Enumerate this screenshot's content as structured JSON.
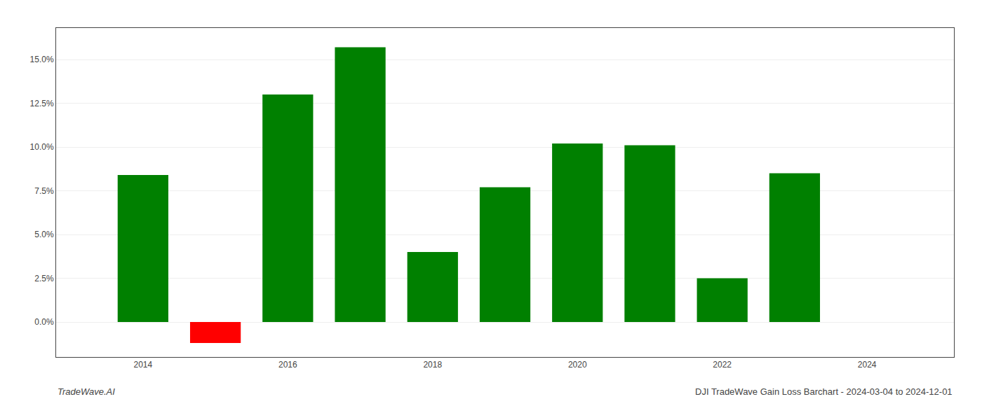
{
  "chart_data": {
    "type": "bar",
    "x": [
      2014,
      2015,
      2016,
      2017,
      2018,
      2019,
      2020,
      2021,
      2022,
      2023
    ],
    "values": [
      0.084,
      -0.012,
      0.13,
      0.157,
      0.04,
      0.077,
      0.102,
      0.101,
      0.025,
      0.085
    ],
    "colors": [
      "#008000",
      "#ff0000",
      "#008000",
      "#008000",
      "#008000",
      "#008000",
      "#008000",
      "#008000",
      "#008000",
      "#008000"
    ],
    "xlim": [
      2012.8,
      2025.2
    ],
    "xticks": [
      2014,
      2016,
      2018,
      2020,
      2022,
      2024
    ],
    "ylim": [
      -0.02,
      0.168
    ],
    "yticks": [
      {
        "value": 0.0,
        "label": "0.0%"
      },
      {
        "value": 0.025,
        "label": "2.5%"
      },
      {
        "value": 0.05,
        "label": "5.0%"
      },
      {
        "value": 0.075,
        "label": "7.5%"
      },
      {
        "value": 0.1,
        "label": "10.0%"
      },
      {
        "value": 0.125,
        "label": "12.5%"
      },
      {
        "value": 0.15,
        "label": "15.0%"
      }
    ],
    "grid": true,
    "annotations": [
      "TradeWave.AI",
      "DJI TradeWave Gain Loss Barchart - 2024-03-04 to 2024-12-01"
    ]
  }
}
